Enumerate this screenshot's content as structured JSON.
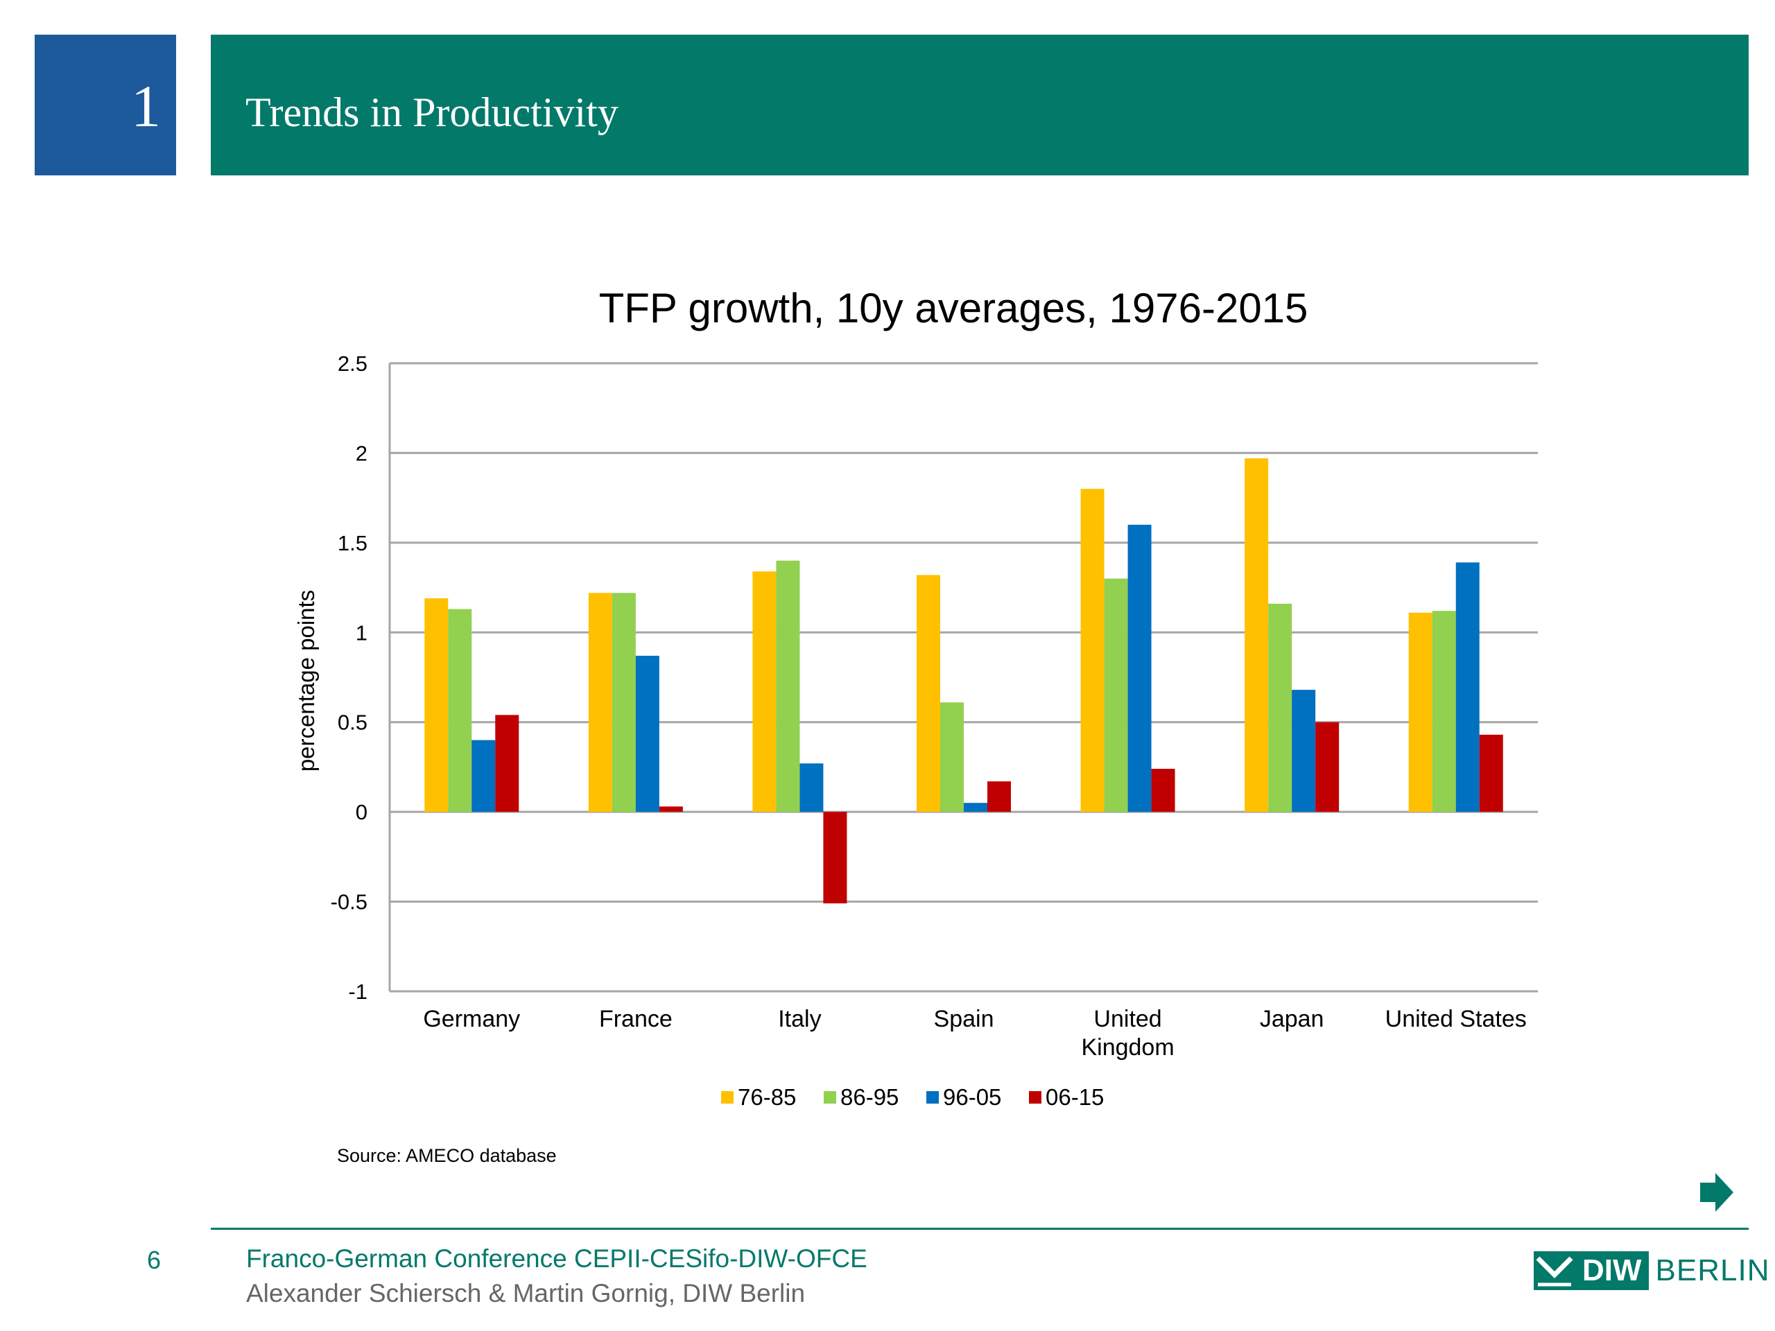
{
  "header": {
    "section_number": "1",
    "title": "Trends in Productivity"
  },
  "chart_data": {
    "type": "bar",
    "title": "TFP growth, 10y averages, 1976-2015",
    "ylabel": "percentage points",
    "xlabel": "",
    "ylim": [
      -1,
      2.5
    ],
    "yticks": [
      "2.5",
      "2",
      "1.5",
      "1",
      "0.5",
      "0",
      "-0.5",
      "-1"
    ],
    "grid": true,
    "legend_position": "bottom",
    "categories": [
      "Germany",
      "France",
      "Italy",
      "Spain",
      "United Kingdom",
      "Japan",
      "United States"
    ],
    "category_lines": [
      [
        "Germany"
      ],
      [
        "France"
      ],
      [
        "Italy"
      ],
      [
        "Spain"
      ],
      [
        "United",
        "Kingdom"
      ],
      [
        "Japan"
      ],
      [
        "United States"
      ]
    ],
    "series": [
      {
        "name": "76-85",
        "color": "#ffc000",
        "values": [
          1.19,
          1.22,
          1.34,
          1.32,
          1.8,
          1.97,
          1.11
        ]
      },
      {
        "name": "86-95",
        "color": "#92d050",
        "values": [
          1.13,
          1.22,
          1.4,
          0.61,
          1.3,
          1.16,
          1.12
        ]
      },
      {
        "name": "96-05",
        "color": "#0070c0",
        "values": [
          0.4,
          0.87,
          0.27,
          0.05,
          1.6,
          0.68,
          1.39
        ]
      },
      {
        "name": "06-15",
        "color": "#c00000",
        "values": [
          0.54,
          0.03,
          -0.51,
          0.17,
          0.24,
          0.5,
          0.43
        ]
      }
    ],
    "source": "Source:  AMECO database"
  },
  "footer": {
    "page_number": "6",
    "line1": "Franco-German Conference CEPII-CESifo-DIW-OFCE",
    "line2": "Alexander Schiersch & Martin Gornig, DIW Berlin",
    "logo_part1": "DIW",
    "logo_part2": "BERLIN"
  },
  "icons": {
    "next": "arrow-right-icon"
  }
}
